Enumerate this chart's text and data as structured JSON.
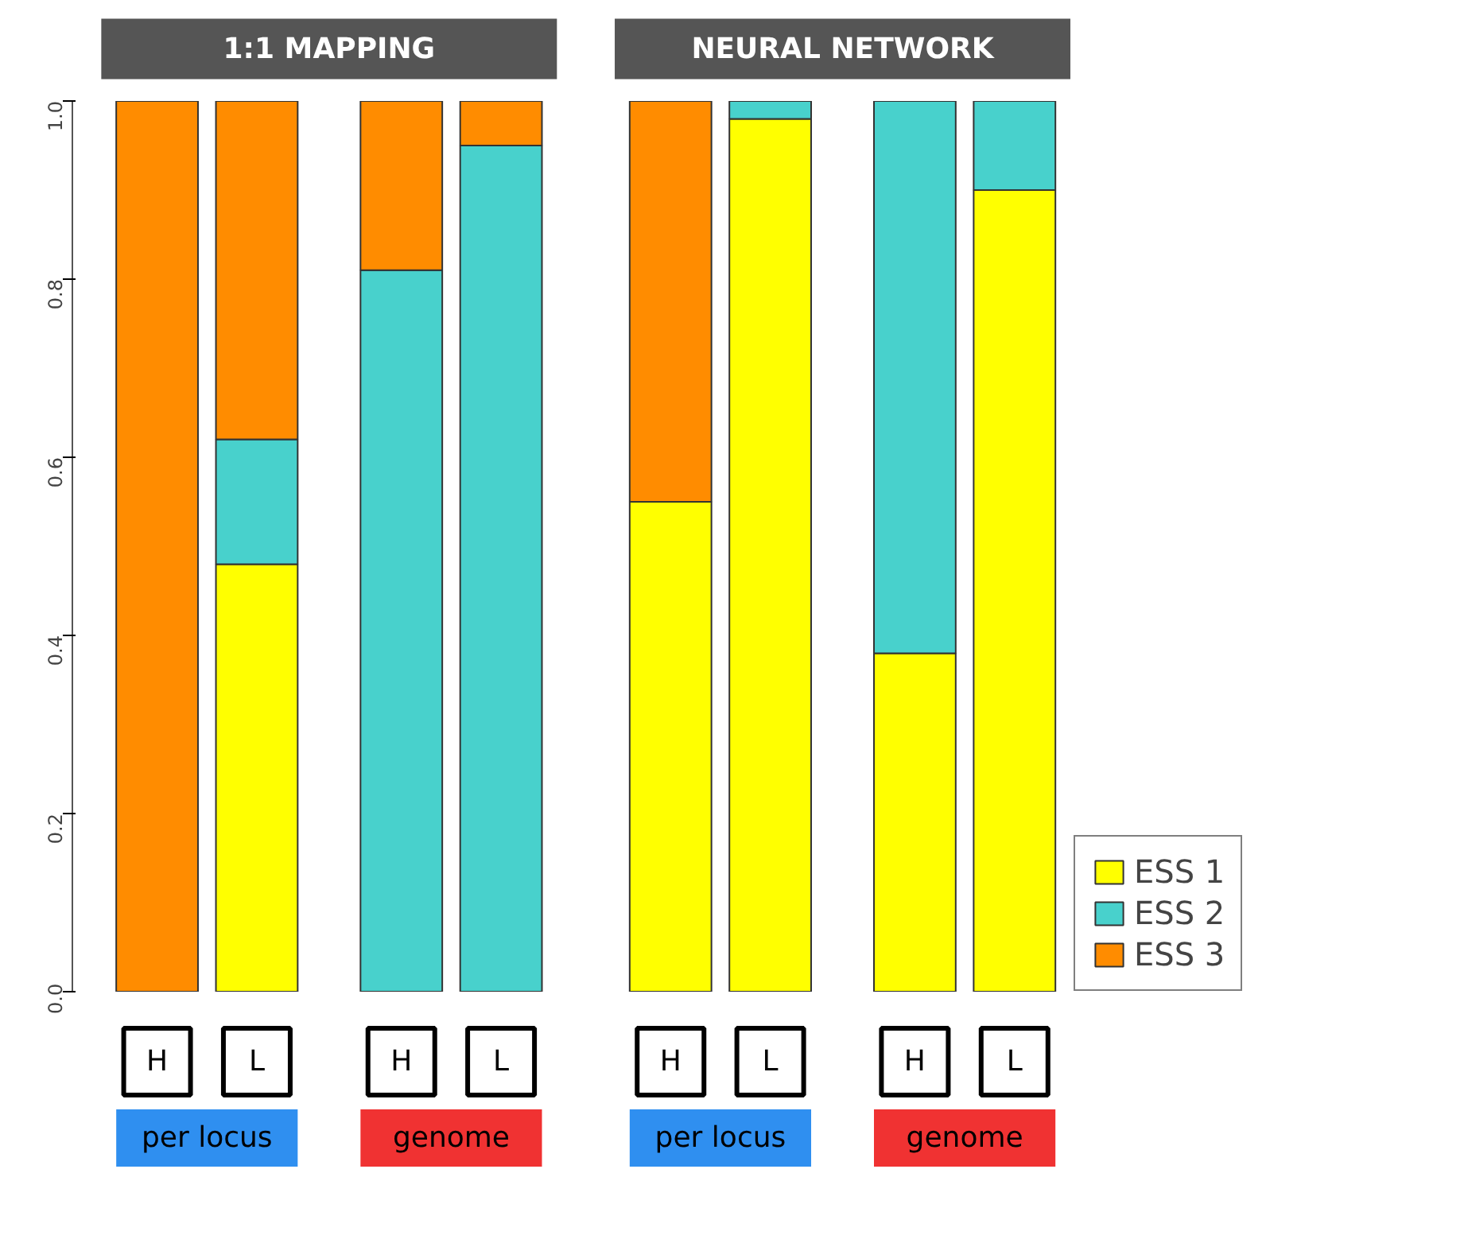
{
  "chart_data": {
    "type": "bar",
    "stacked": true,
    "categories": [
      "H",
      "L",
      "H",
      "L",
      "H",
      "L",
      "H",
      "L"
    ],
    "series": [
      {
        "name": "ESS 1",
        "color": "#ffff00",
        "values": [
          0,
          0.48,
          0,
          0,
          0.55,
          0.98,
          0.38,
          0.9
        ]
      },
      {
        "name": "ESS 2",
        "color": "#48d1cc",
        "values": [
          0,
          0.14,
          0.81,
          0.95,
          0,
          0.02,
          0.62,
          0.1
        ]
      },
      {
        "name": "ESS 3",
        "color": "#ff8c00",
        "values": [
          1.0,
          0.38,
          0.19,
          0.05,
          0.45,
          0,
          0,
          0
        ]
      }
    ],
    "ylim": [
      0,
      1.0
    ],
    "yticks": [
      {
        "value": 0,
        "label": "0.0"
      },
      0.2,
      0.4,
      0.6,
      0.8,
      {
        "value": 1,
        "label": "1.0"
      }
    ],
    "annotations": [
      "1:1 MAPPING",
      "NEURAL NETWORK",
      "per locus",
      "genome",
      "per locus",
      "genome"
    ],
    "legend": "bottom right",
    "grid": false
  }
}
